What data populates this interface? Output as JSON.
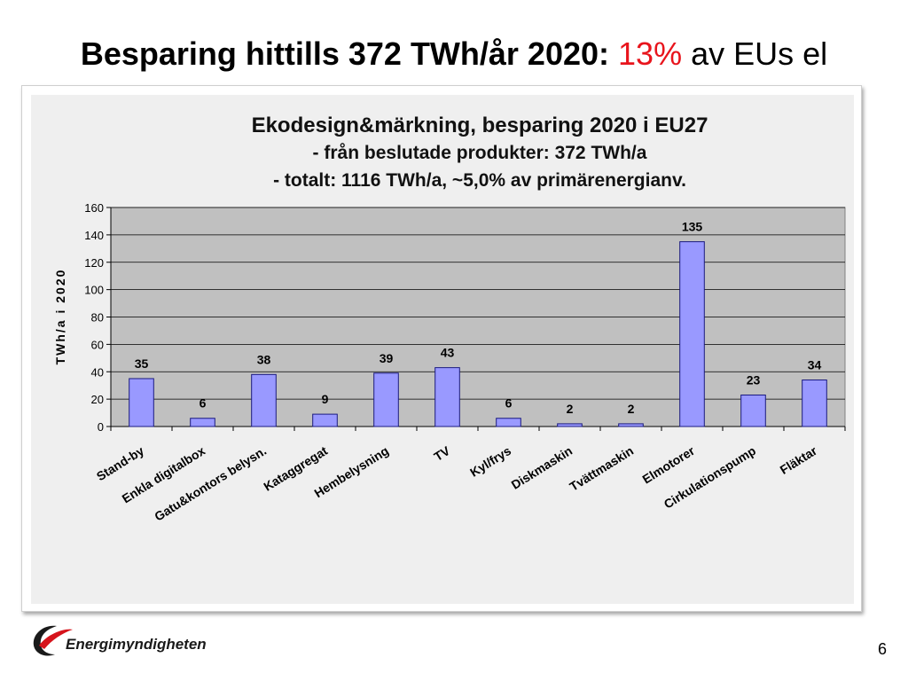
{
  "slide": {
    "title_part1": "Besparing hittills 372 TWh/år 2020:",
    "title_highlight": "13%",
    "title_part3": "av EUs el",
    "page_number": "6",
    "logo_text": "Energimyndigheten"
  },
  "colors": {
    "bar_fill": "#9999ff",
    "bar_stroke": "#1a1a80",
    "plot_bg": "#c0c0c0",
    "chart_bg": "#efefef",
    "highlight": "#e8141c"
  },
  "chart_data": {
    "type": "bar",
    "title_lines": [
      "Ekodesign&märkning, besparing 2020 i EU27",
      "- från beslutade produkter: 372 TWh/a",
      "- totalt: 1116 TWh/a, ~5,0% av primärenergianv."
    ],
    "xlabel": "",
    "ylabel": "TWh/a i 2020",
    "ylim": [
      0,
      160
    ],
    "yticks": [
      0,
      20,
      40,
      60,
      80,
      100,
      120,
      140,
      160
    ],
    "grid": true,
    "legend": "none",
    "categories": [
      "Stand-by",
      "Enkla digitalbox",
      "Gatu&kontors belysn.",
      "Kataggregat",
      "Hembelysning",
      "TV",
      "Kyl/frys",
      "Diskmaskin",
      "Tvättmaskin",
      "Elmotorer",
      "Cirkulationspump",
      "Fläktar"
    ],
    "values": [
      35,
      6,
      38,
      9,
      39,
      43,
      6,
      2,
      2,
      135,
      23,
      34
    ]
  }
}
